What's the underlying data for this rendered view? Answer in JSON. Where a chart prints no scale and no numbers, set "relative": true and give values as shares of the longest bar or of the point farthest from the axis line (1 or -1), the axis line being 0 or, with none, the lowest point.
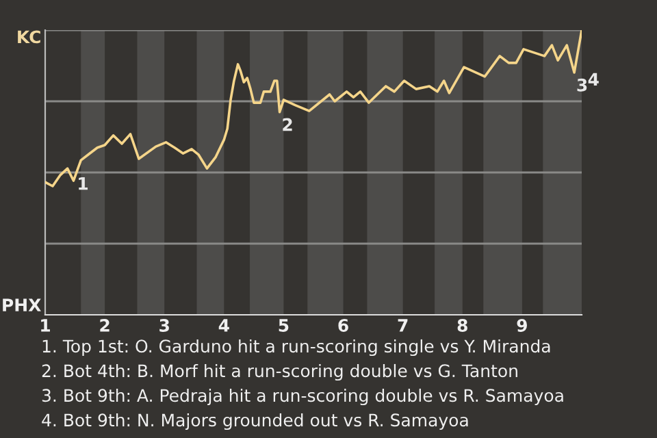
{
  "chart_data": {
    "type": "line",
    "relative": true,
    "x": [
      1.0,
      1.125,
      1.25,
      1.375,
      1.475,
      1.6,
      1.725,
      1.875,
      2.0,
      2.143,
      2.286,
      2.429,
      2.571,
      2.857,
      3.029,
      3.171,
      3.314,
      3.457,
      3.571,
      3.714,
      3.857,
      4.0,
      4.056,
      4.111,
      4.167,
      4.233,
      4.278,
      4.333,
      4.389,
      4.444,
      4.5,
      4.611,
      4.667,
      4.778,
      4.844,
      4.889,
      4.933,
      5.0,
      5.2,
      5.429,
      5.771,
      5.857,
      6.057,
      6.171,
      6.286,
      6.429,
      6.714,
      6.857,
      7.022,
      7.222,
      7.444,
      7.578,
      7.689,
      7.778,
      8.025,
      8.375,
      8.625,
      8.775,
      8.9,
      9.025,
      9.375,
      9.5,
      9.6,
      9.75,
      9.875,
      10.0
    ],
    "series": [
      {
        "color": "#f5d58a",
        "values": [
          0.466,
          0.452,
          0.49,
          0.514,
          0.471,
          0.543,
          0.563,
          0.587,
          0.596,
          0.63,
          0.601,
          0.635,
          0.548,
          0.591,
          0.606,
          0.587,
          0.567,
          0.582,
          0.563,
          0.514,
          0.553,
          0.615,
          0.654,
          0.755,
          0.822,
          0.88,
          0.856,
          0.817,
          0.832,
          0.793,
          0.745,
          0.745,
          0.784,
          0.784,
          0.822,
          0.822,
          0.712,
          0.755,
          0.736,
          0.716,
          0.774,
          0.75,
          0.784,
          0.764,
          0.784,
          0.745,
          0.803,
          0.784,
          0.822,
          0.793,
          0.803,
          0.784,
          0.822,
          0.779,
          0.87,
          0.837,
          0.909,
          0.885,
          0.885,
          0.933,
          0.909,
          0.947,
          0.894,
          0.947,
          0.851,
          1.0
        ]
      }
    ],
    "xlim": [
      1,
      10
    ],
    "xticks": [
      1,
      2,
      3,
      4,
      5,
      6,
      7,
      8,
      9
    ],
    "marker": "none",
    "line_style": "solid",
    "ref_lines": [
      {
        "axis": "y",
        "value": 0.25,
        "color": "#8a8a88"
      },
      {
        "axis": "y",
        "value": 0.5,
        "color": "#8a8a88"
      },
      {
        "axis": "y",
        "value": 0.75,
        "color": "#8a8a88"
      },
      {
        "axis": "y",
        "value": 1,
        "color": "#8a8a88"
      }
    ],
    "bands": [
      {
        "axis": "x",
        "from": 1.6,
        "to": 2.0,
        "color": "#4d4c4a"
      },
      {
        "axis": "x",
        "from": 2.543,
        "to": 3.0,
        "color": "#4d4c4a"
      },
      {
        "axis": "x",
        "from": 3.543,
        "to": 4.0,
        "color": "#4d4c4a"
      },
      {
        "axis": "x",
        "from": 4.433,
        "to": 5.0,
        "color": "#4d4c4a"
      },
      {
        "axis": "x",
        "from": 5.4,
        "to": 6.0,
        "color": "#4d4c4a"
      },
      {
        "axis": "x",
        "from": 6.4,
        "to": 7.0,
        "color": "#4d4c4a"
      },
      {
        "axis": "x",
        "from": 7.533,
        "to": 8.0,
        "color": "#4d4c4a"
      },
      {
        "axis": "x",
        "from": 8.35,
        "to": 9.0,
        "color": "#4d4c4a"
      },
      {
        "axis": "x",
        "from": 9.35,
        "to": 10.0,
        "color": "#4d4c4a"
      }
    ],
    "annotations": [
      "KC",
      "PHX",
      {
        "text": "1",
        "x": 1.5,
        "y": 0.505
      },
      {
        "text": "2",
        "x": 4.933,
        "y": 0.712
      },
      {
        "text": "3",
        "x": 9.875,
        "y": 0.851
      },
      {
        "text": "4",
        "x": 9.875,
        "y": 0.851
      },
      "1. Top 1st: O. Garduno hit a run-scoring single vs Y. Miranda",
      "2. Bot 4th: B. Morf hit a run-scoring double vs G. Tanton",
      "3. Bot 9th: A. Pedraja hit a run-scoring double vs R. Samayoa",
      "4. Bot 9th: N. Majors grounded out vs R. Samayoa"
    ]
  }
}
